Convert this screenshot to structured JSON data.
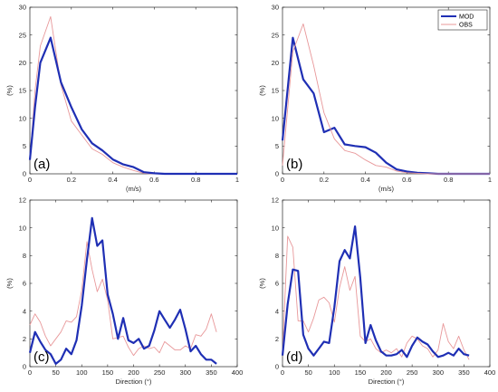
{
  "chart_data": [
    {
      "type": "line",
      "panel_label": "(a)",
      "xlabel": "(m/s)",
      "ylabel": "(%)",
      "xlim": [
        0,
        1
      ],
      "ylim": [
        0,
        30
      ],
      "xticks": [
        0,
        0.2,
        0.4,
        0.6,
        0.8,
        1
      ],
      "xtick_labels": [
        "0",
        "0.2",
        "0.4",
        "0.6",
        "0.8",
        "1"
      ],
      "yticks": [
        0,
        5,
        10,
        15,
        20,
        25,
        30
      ],
      "ytick_labels": [
        "0",
        "5",
        "10",
        "15",
        "20",
        "25",
        "30"
      ],
      "series": [
        {
          "name": "OBS",
          "color": "#e8989a",
          "x": [
            0,
            0.025,
            0.05,
            0.1,
            0.15,
            0.2,
            0.25,
            0.3,
            0.35,
            0.4,
            0.45,
            0.5,
            0.55,
            0.6,
            0.65,
            0.7,
            0.75,
            0.8,
            0.85,
            0.9,
            0.95,
            1.0
          ],
          "y": [
            2.5,
            15,
            23,
            28.3,
            16,
            9.5,
            7,
            4.5,
            3.5,
            2,
            1.2,
            0.6,
            0.1,
            0,
            0,
            0,
            0,
            0,
            0,
            0,
            0,
            0
          ]
        },
        {
          "name": "MOD",
          "color": "#1f2fb4",
          "x": [
            0,
            0.025,
            0.05,
            0.1,
            0.15,
            0.2,
            0.25,
            0.3,
            0.35,
            0.4,
            0.45,
            0.5,
            0.55,
            0.6,
            0.65,
            0.7,
            0.75,
            0.8,
            0.85,
            0.9,
            0.95,
            1.0
          ],
          "y": [
            2.5,
            12,
            20,
            24.5,
            16.5,
            12,
            8,
            5.5,
            4.2,
            2.6,
            1.7,
            1.2,
            0.3,
            0.1,
            0,
            0,
            0,
            0,
            0,
            0,
            0,
            0
          ]
        }
      ]
    },
    {
      "type": "line",
      "panel_label": "(b)",
      "xlabel": "(m/s)",
      "ylabel": "(%)",
      "xlim": [
        0,
        1
      ],
      "ylim": [
        0,
        30
      ],
      "xticks": [
        0,
        0.2,
        0.4,
        0.6,
        0.8,
        1
      ],
      "xtick_labels": [
        "0",
        "0.2",
        "0.4",
        "0.6",
        "0.8",
        "1"
      ],
      "yticks": [
        0,
        5,
        10,
        15,
        20,
        25,
        30
      ],
      "ytick_labels": [
        "0",
        "5",
        "10",
        "15",
        "20",
        "25",
        "30"
      ],
      "legend": {
        "position": "top-right",
        "entries": [
          "MOD",
          "OBS"
        ]
      },
      "series": [
        {
          "name": "MOD",
          "color": "#1f2fb4",
          "x": [
            0,
            0.05,
            0.1,
            0.15,
            0.2,
            0.25,
            0.3,
            0.35,
            0.4,
            0.45,
            0.5,
            0.55,
            0.6,
            0.65,
            0.7,
            0.75,
            0.8,
            0.85,
            0.9,
            0.95,
            1.0
          ],
          "y": [
            6,
            24.5,
            17,
            14.5,
            7.5,
            8.3,
            5.3,
            5,
            4.8,
            3.8,
            2,
            0.8,
            0.4,
            0.2,
            0.1,
            0,
            0,
            0,
            0,
            0,
            0
          ]
        },
        {
          "name": "OBS",
          "color": "#e8989a",
          "x": [
            0,
            0.05,
            0.1,
            0.15,
            0.2,
            0.25,
            0.3,
            0.35,
            0.4,
            0.45,
            0.5,
            0.55,
            0.6,
            0.65,
            0.7,
            0.75,
            0.8,
            0.85,
            0.9,
            0.95,
            1.0
          ],
          "y": [
            1.5,
            22,
            27,
            19.5,
            11,
            6.3,
            4.2,
            3.7,
            2.5,
            1.5,
            1.2,
            0.5,
            0.2,
            0.1,
            0,
            0,
            0,
            0,
            0,
            0,
            0
          ]
        }
      ]
    },
    {
      "type": "line",
      "panel_label": "(c)",
      "xlabel": "Direction (°)",
      "ylabel": "(%)",
      "xlim": [
        0,
        400
      ],
      "ylim": [
        0,
        12
      ],
      "xticks": [
        0,
        50,
        100,
        150,
        200,
        250,
        300,
        350,
        400
      ],
      "xtick_labels": [
        "0",
        "50",
        "100",
        "150",
        "200",
        "250",
        "300",
        "350",
        "400"
      ],
      "yticks": [
        0,
        2,
        4,
        6,
        8,
        10,
        12
      ],
      "ytick_labels": [
        "0",
        "2",
        "4",
        "6",
        "8",
        "10",
        "12"
      ],
      "series": [
        {
          "name": "OBS",
          "color": "#e8989a",
          "x": [
            0,
            10,
            20,
            30,
            40,
            50,
            60,
            70,
            80,
            90,
            100,
            110,
            120,
            130,
            140,
            150,
            160,
            170,
            180,
            190,
            200,
            210,
            220,
            230,
            240,
            250,
            260,
            270,
            280,
            290,
            300,
            310,
            320,
            330,
            340,
            350,
            360
          ],
          "y": [
            3,
            3.8,
            3.2,
            2.2,
            1.5,
            2,
            2.5,
            3.3,
            3.2,
            3.6,
            5.5,
            9,
            7,
            5.4,
            6.3,
            4.8,
            2,
            2.1,
            2.2,
            1.4,
            0.8,
            1.3,
            1.5,
            1.3,
            1.4,
            1,
            1.8,
            1.5,
            1.2,
            1.2,
            1.5,
            1.3,
            2.3,
            2.2,
            2.7,
            3.8,
            2.5
          ]
        },
        {
          "name": "MOD",
          "color": "#1f2fb4",
          "x": [
            0,
            10,
            20,
            30,
            40,
            50,
            60,
            70,
            80,
            90,
            100,
            110,
            120,
            130,
            140,
            150,
            160,
            170,
            180,
            190,
            200,
            210,
            220,
            230,
            240,
            250,
            260,
            270,
            280,
            290,
            300,
            310,
            320,
            330,
            340,
            350,
            360
          ],
          "y": [
            1,
            2.5,
            1.8,
            1.2,
            0.9,
            0.2,
            0.5,
            1.3,
            0.9,
            1.9,
            4.4,
            7.7,
            10.7,
            8.7,
            9.1,
            5.2,
            3.8,
            2,
            3.5,
            1.9,
            1.7,
            2,
            1.3,
            1.5,
            2.6,
            4,
            3.4,
            2.8,
            3.4,
            4.1,
            2.7,
            1.1,
            1.5,
            0.9,
            0.5,
            0.5,
            0.2
          ]
        }
      ]
    },
    {
      "type": "line",
      "panel_label": "(d)",
      "xlabel": "Direction (°)",
      "ylabel": "(%)",
      "xlim": [
        0,
        400
      ],
      "ylim": [
        0,
        12
      ],
      "xticks": [
        0,
        50,
        100,
        150,
        200,
        250,
        300,
        350,
        400
      ],
      "xtick_labels": [
        "0",
        "50",
        "100",
        "150",
        "200",
        "250",
        "300",
        "350",
        "400"
      ],
      "yticks": [
        0,
        2,
        4,
        6,
        8,
        10,
        12
      ],
      "ytick_labels": [
        "0",
        "2",
        "4",
        "6",
        "8",
        "10",
        "12"
      ],
      "series": [
        {
          "name": "OBS",
          "color": "#e8989a",
          "x": [
            0,
            10,
            20,
            30,
            40,
            50,
            60,
            70,
            80,
            90,
            100,
            110,
            120,
            130,
            140,
            150,
            160,
            170,
            180,
            190,
            200,
            210,
            220,
            230,
            240,
            250,
            260,
            270,
            280,
            290,
            300,
            310,
            320,
            330,
            340,
            350,
            360
          ],
          "y": [
            1,
            9.4,
            8.6,
            3.3,
            3.3,
            2.5,
            3.5,
            4.8,
            5,
            4.6,
            3.2,
            5.7,
            7.2,
            5.5,
            6.5,
            2.2,
            1.8,
            2,
            1.3,
            1,
            1.2,
            1,
            1.3,
            0.7,
            1.7,
            2.2,
            2,
            1.5,
            1.3,
            0.7,
            1.2,
            3.1,
            1.8,
            1.3,
            2.2,
            1.2,
            0.5
          ]
        },
        {
          "name": "MOD",
          "color": "#1f2fb4",
          "x": [
            0,
            10,
            20,
            30,
            40,
            50,
            60,
            70,
            80,
            90,
            100,
            110,
            120,
            130,
            140,
            150,
            160,
            170,
            180,
            190,
            200,
            210,
            220,
            230,
            240,
            250,
            260,
            270,
            280,
            290,
            300,
            310,
            320,
            330,
            340,
            350,
            360
          ],
          "y": [
            0.8,
            4.5,
            7,
            6.9,
            2.3,
            1.3,
            0.8,
            1.3,
            1.8,
            1.7,
            4.3,
            7.6,
            8.4,
            7.8,
            10.1,
            6.4,
            1.7,
            3,
            1.9,
            1.1,
            0.8,
            0.8,
            0.9,
            1.2,
            0.7,
            1.5,
            2.1,
            1.8,
            1.6,
            1.1,
            0.7,
            0.8,
            1,
            0.8,
            1.3,
            0.9,
            0.8
          ]
        }
      ]
    }
  ]
}
